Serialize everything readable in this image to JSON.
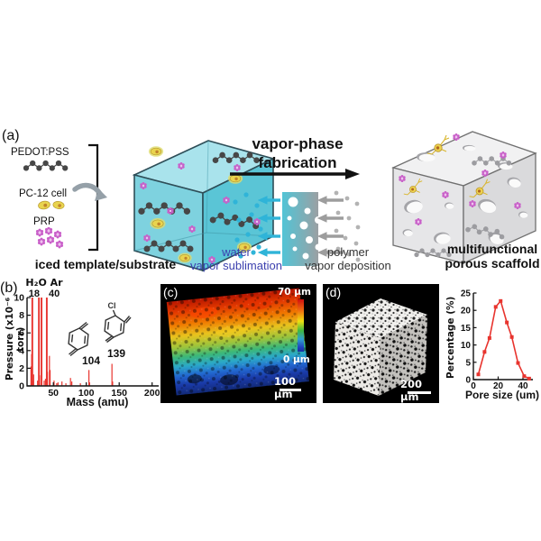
{
  "panel_a": {
    "label": "(a)",
    "legend": {
      "pedot": "PEDOT:PSS",
      "pc12": "PC-12 cell",
      "prp": "PRP"
    },
    "iced_caption": "iced template/substrate",
    "process": {
      "line1": "vapor-phase",
      "line2": "fabrication"
    },
    "water": {
      "line1": "water",
      "line2": "vapor sublimation"
    },
    "polymer": {
      "line1": "polymer",
      "line2": "vapor deposition"
    },
    "scaffold_caption": {
      "line1": "multifunctional",
      "line2": "porous scaffold"
    }
  },
  "panel_b": {
    "label": "(b)",
    "ylabel": "Pressure (x10⁻⁶ torr)",
    "xlabel": "Mass (amu)",
    "peak_header": {
      "molecules": "H₂O Ar",
      "masses": "18 40"
    },
    "structure_104": {
      "mass_label": "104"
    },
    "structure_139": {
      "mass_label": "139",
      "substituent": "Cl"
    }
  },
  "panel_c": {
    "label": "(c)",
    "colorbar_max": "70 μm",
    "colorbar_min": "0 μm",
    "scale_bar": "100 μm"
  },
  "panel_d": {
    "label": "(d)",
    "scale_bar": "200 μm"
  },
  "pore_chart": {
    "ylabel": "Percentage (%)",
    "xlabel": "Pore size (um)"
  },
  "icons": {
    "right-arrow-icon": "black process arrow →",
    "left-arrow-icon": "vapor flow arrow ←",
    "curved-arrow-icon": "gray swoosh arrow",
    "bracket-icon": "legend grouping bracket ]"
  },
  "colors": {
    "spectrum_red": "#e8342e",
    "water_blue_text": "#3b3fae",
    "vapor_cyan": "#2fb4d8",
    "polymer_gray": "#9d9d9d",
    "ice_cube_teal": "#7bd0dd",
    "scaffold_gray": "#e6e6e8",
    "cell_yellow": "#e9d44f",
    "prp_pink": "#c95fc9"
  },
  "chart_data": [
    {
      "type": "line",
      "subtype": "mass-spectrum-sticks",
      "title": "",
      "xlabel": "Mass (amu)",
      "ylabel": "Pressure (x10⁻⁶ torr)",
      "xlim": [
        10,
        210
      ],
      "ylim": [
        0,
        10
      ],
      "xticks": [
        50,
        100,
        150,
        200
      ],
      "yticks": [
        0,
        2,
        4,
        6,
        8,
        10
      ],
      "grid": false,
      "legend": null,
      "line_color": "#e8342e",
      "peaks": [
        [
          16,
          2.2
        ],
        [
          17,
          3.6
        ],
        [
          18,
          10
        ],
        [
          19,
          0.6
        ],
        [
          20,
          1.3
        ],
        [
          26,
          0.6
        ],
        [
          28,
          10
        ],
        [
          29,
          1.2
        ],
        [
          32,
          10
        ],
        [
          36,
          0.6
        ],
        [
          38,
          0.8
        ],
        [
          40,
          10
        ],
        [
          41,
          1.6
        ],
        [
          44,
          3.4
        ],
        [
          45,
          1.8
        ],
        [
          51,
          0.6
        ],
        [
          55,
          0.3
        ],
        [
          57,
          0.4
        ],
        [
          63,
          0.5
        ],
        [
          69,
          0.3
        ],
        [
          76,
          0.9
        ],
        [
          78,
          0.5
        ],
        [
          91,
          0.3
        ],
        [
          104,
          1.8
        ],
        [
          105,
          0.4
        ],
        [
          139,
          2.5
        ],
        [
          140,
          0.5
        ]
      ],
      "annotations": [
        {
          "text": "H₂O",
          "mass": 18
        },
        {
          "text": "Ar",
          "mass": 40
        },
        {
          "text": "18",
          "mass": 18
        },
        {
          "text": "40",
          "mass": 40
        },
        {
          "text": "104",
          "mass": 104
        },
        {
          "text": "139",
          "mass": 139
        }
      ]
    },
    {
      "type": "line",
      "title": "",
      "xlabel": "Pore size (um)",
      "ylabel": "Percentage (%)",
      "xlim": [
        0,
        48
      ],
      "ylim": [
        0,
        25
      ],
      "xticks": [
        0,
        20,
        40
      ],
      "yticks": [
        0,
        5,
        10,
        15,
        20,
        25
      ],
      "grid": false,
      "legend": null,
      "marker": "square",
      "line_color": "#e8342e",
      "x": [
        4,
        9,
        13,
        18,
        22,
        27,
        31,
        36,
        41,
        45
      ],
      "y": [
        1.5,
        8,
        12,
        21,
        22.7,
        16.5,
        12.3,
        4.8,
        1,
        0.3
      ]
    }
  ]
}
